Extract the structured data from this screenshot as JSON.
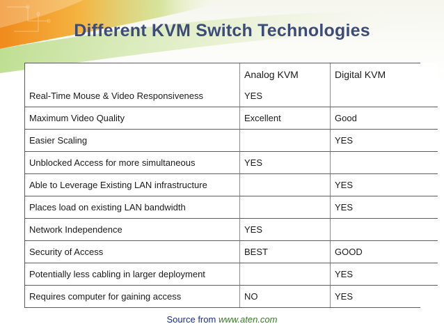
{
  "slide": {
    "title": "Different KVM Switch Technologies",
    "source_prefix": "Source from ",
    "source_link": "www.aten.com"
  },
  "table": {
    "headers": [
      "",
      "Analog KVM",
      "Digital KVM"
    ],
    "rows": [
      [
        "Real-Time Mouse & Video Responsiveness",
        "YES",
        ""
      ],
      [
        "Maximum Video Quality",
        "Excellent",
        "Good"
      ],
      [
        "Easier Scaling",
        "",
        "YES"
      ],
      [
        "Unblocked Access for more simultaneous",
        "YES",
        ""
      ],
      [
        "Able to Leverage Existing LAN infrastructure",
        "",
        "YES"
      ],
      [
        "Places load on existing LAN bandwidth",
        "",
        "YES"
      ],
      [
        "Network Independence",
        "YES",
        ""
      ],
      [
        "Security of Access",
        "BEST",
        "GOOD"
      ],
      [
        "Potentially less cabling in larger deployment",
        "",
        "YES"
      ],
      [
        "Requires computer for gaining access",
        "NO",
        "YES"
      ]
    ]
  },
  "colors": {
    "title": "#3d4b7a",
    "source_text": "#1c2f8c",
    "source_link": "#3a7a2a",
    "decor_orange": "#f29a2e",
    "decor_green": "#9ccc3c"
  }
}
